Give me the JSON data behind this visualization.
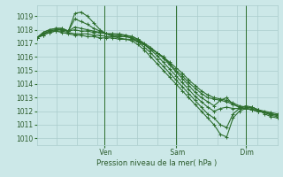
{
  "bg_color": "#cce8e8",
  "grid_color": "#aacccc",
  "line_color": "#2d6e2d",
  "marker_color": "#2d6e2d",
  "ylabel_ticks": [
    1010,
    1011,
    1012,
    1013,
    1014,
    1015,
    1016,
    1017,
    1018,
    1019
  ],
  "xlabel": "Pression niveau de la mer( hPa )",
  "day_labels": [
    " Ven",
    " Sam",
    " Dim"
  ],
  "day_positions": [
    0.28,
    0.58,
    0.87
  ],
  "ylim": [
    1009.5,
    1019.8
  ],
  "xlim": [
    0,
    1
  ],
  "lines": [
    [
      1017.4,
      1017.8,
      1018.0,
      1018.1,
      1018.1,
      1017.9,
      1019.2,
      1019.3,
      1019.0,
      1018.5,
      1018.0,
      1017.7,
      1017.5,
      1017.4,
      1017.3,
      1017.2,
      1016.9,
      1016.5,
      1016.0,
      1015.5,
      1015.0,
      1014.5,
      1014.0,
      1013.5,
      1013.0,
      1012.5,
      1012.0,
      1011.5,
      1011.0,
      1010.3,
      1010.1,
      1011.5,
      1012.0,
      1012.2,
      1012.3,
      1012.1,
      1011.8,
      1011.6,
      1011.5
    ],
    [
      1017.4,
      1017.8,
      1018.0,
      1018.1,
      1018.1,
      1017.9,
      1018.8,
      1018.6,
      1018.4,
      1018.1,
      1017.9,
      1017.7,
      1017.6,
      1017.5,
      1017.5,
      1017.4,
      1017.1,
      1016.7,
      1016.3,
      1015.8,
      1015.3,
      1014.8,
      1014.3,
      1013.8,
      1013.3,
      1012.8,
      1012.3,
      1011.8,
      1011.5,
      1011.0,
      1010.8,
      1011.8,
      1012.2,
      1012.4,
      1012.3,
      1012.1,
      1011.9,
      1011.7,
      1011.6
    ],
    [
      1017.4,
      1017.7,
      1017.9,
      1018.0,
      1018.0,
      1017.9,
      1018.2,
      1018.1,
      1018.0,
      1017.9,
      1017.8,
      1017.7,
      1017.7,
      1017.6,
      1017.6,
      1017.5,
      1017.3,
      1016.9,
      1016.5,
      1016.1,
      1015.6,
      1015.1,
      1014.6,
      1014.1,
      1013.6,
      1013.1,
      1012.7,
      1012.3,
      1012.0,
      1012.2,
      1012.3,
      1012.2,
      1012.2,
      1012.2,
      1012.1,
      1012.0,
      1011.9,
      1011.8,
      1011.7
    ],
    [
      1017.4,
      1017.7,
      1017.9,
      1018.0,
      1018.0,
      1017.9,
      1018.0,
      1017.9,
      1017.9,
      1017.8,
      1017.8,
      1017.7,
      1017.7,
      1017.7,
      1017.6,
      1017.5,
      1017.3,
      1017.0,
      1016.7,
      1016.3,
      1015.9,
      1015.4,
      1014.9,
      1014.4,
      1013.9,
      1013.4,
      1013.0,
      1012.7,
      1012.4,
      1012.8,
      1013.0,
      1012.5,
      1012.3,
      1012.2,
      1012.1,
      1012.0,
      1011.9,
      1011.8,
      1011.7
    ],
    [
      1017.4,
      1017.6,
      1017.8,
      1017.9,
      1017.9,
      1017.8,
      1017.7,
      1017.7,
      1017.7,
      1017.6,
      1017.6,
      1017.5,
      1017.5,
      1017.5,
      1017.5,
      1017.4,
      1017.2,
      1016.9,
      1016.6,
      1016.3,
      1016.0,
      1015.5,
      1015.0,
      1014.6,
      1014.1,
      1013.7,
      1013.3,
      1013.0,
      1012.9,
      1012.8,
      1012.7,
      1012.5,
      1012.3,
      1012.2,
      1012.1,
      1012.0,
      1011.9,
      1011.8,
      1011.7
    ],
    [
      1017.4,
      1017.6,
      1017.8,
      1017.9,
      1017.8,
      1017.7,
      1017.6,
      1017.6,
      1017.5,
      1017.5,
      1017.4,
      1017.4,
      1017.4,
      1017.3,
      1017.3,
      1017.3,
      1017.1,
      1016.9,
      1016.6,
      1016.3,
      1016.0,
      1015.6,
      1015.2,
      1014.8,
      1014.3,
      1013.9,
      1013.5,
      1013.2,
      1013.0,
      1012.9,
      1012.8,
      1012.6,
      1012.4,
      1012.3,
      1012.2,
      1012.1,
      1012.0,
      1011.9,
      1011.8
    ]
  ]
}
